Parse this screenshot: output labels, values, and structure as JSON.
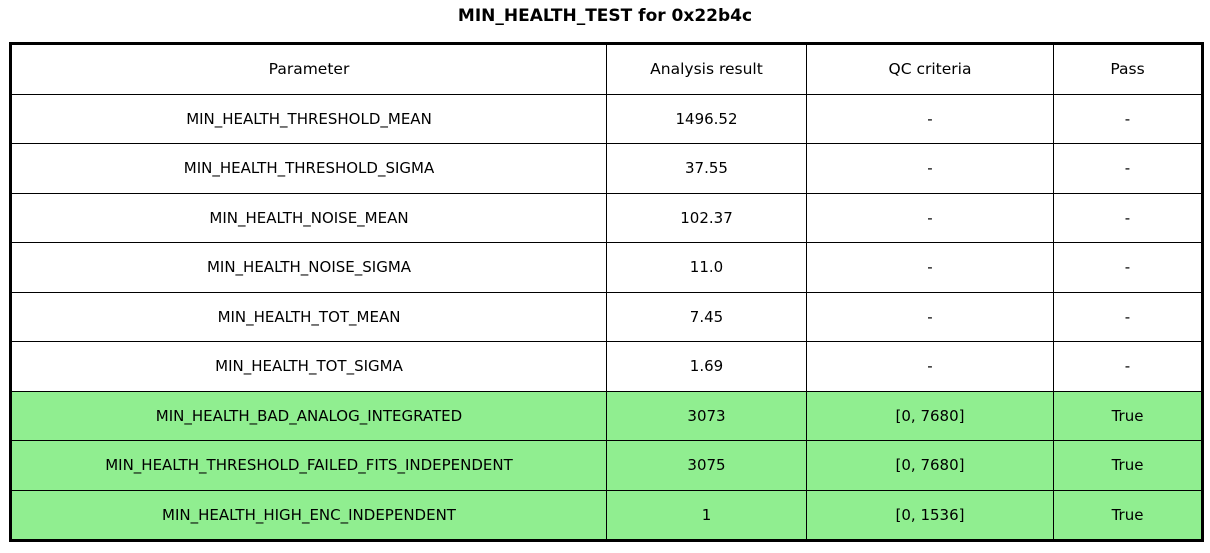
{
  "title": "MIN_HEALTH_TEST for 0x22b4c",
  "colors": {
    "pass_row_bg": "#90ee90",
    "border": "#000000",
    "background": "#ffffff"
  },
  "table": {
    "headers": {
      "parameter": "Parameter",
      "result": "Analysis result",
      "qc": "QC criteria",
      "pass": "Pass"
    },
    "rows": [
      {
        "parameter": "MIN_HEALTH_THRESHOLD_MEAN",
        "result": "1496.52",
        "qc": "-",
        "pass": "-",
        "css": ""
      },
      {
        "parameter": "MIN_HEALTH_THRESHOLD_SIGMA",
        "result": "37.55",
        "qc": "-",
        "pass": "-",
        "css": ""
      },
      {
        "parameter": "MIN_HEALTH_NOISE_MEAN",
        "result": "102.37",
        "qc": "-",
        "pass": "-",
        "css": ""
      },
      {
        "parameter": "MIN_HEALTH_NOISE_SIGMA",
        "result": "11.0",
        "qc": "-",
        "pass": "-",
        "css": ""
      },
      {
        "parameter": "MIN_HEALTH_TOT_MEAN",
        "result": "7.45",
        "qc": "-",
        "pass": "-",
        "css": ""
      },
      {
        "parameter": "MIN_HEALTH_TOT_SIGMA",
        "result": "1.69",
        "qc": "-",
        "pass": "-",
        "css": ""
      },
      {
        "parameter": "MIN_HEALTH_BAD_ANALOG_INTEGRATED",
        "result": "3073",
        "qc": "[0, 7680]",
        "pass": "True",
        "css": "row-pass"
      },
      {
        "parameter": "MIN_HEALTH_THRESHOLD_FAILED_FITS_INDEPENDENT",
        "result": "3075",
        "qc": "[0, 7680]",
        "pass": "True",
        "css": "row-pass"
      },
      {
        "parameter": "MIN_HEALTH_HIGH_ENC_INDEPENDENT",
        "result": "1",
        "qc": "[0, 1536]",
        "pass": "True",
        "css": "row-pass"
      }
    ]
  }
}
